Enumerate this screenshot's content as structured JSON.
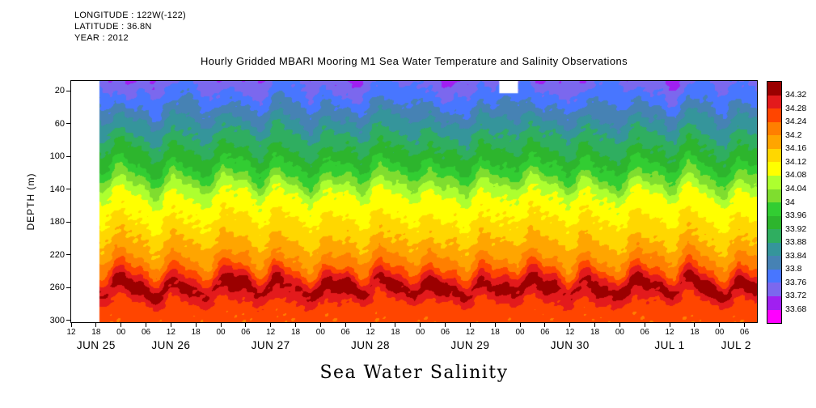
{
  "header": {
    "line1": "LONGITUDE : 122W(-122)",
    "line2": "LATITUDE : 36.8N",
    "line3": "YEAR : 2012"
  },
  "title": "Hourly Gridded MBARI Mooring M1 Sea Water Temperature and Salinity Observations",
  "footer_title": "Sea Water Salinity",
  "chart_data": {
    "type": "heatmap",
    "title": "Hourly Gridded MBARI Mooring M1 Sea Water Temperature and Salinity Observations",
    "xlabel": "",
    "ylabel": "DEPTH (m)",
    "y_ticks": [
      20,
      60,
      100,
      140,
      180,
      220,
      260,
      300
    ],
    "y_range": [
      8,
      302
    ],
    "x_range_hours": [
      0,
      165
    ],
    "x_tick_step_hours": 6,
    "x_tick_labels": [
      "12",
      "18",
      "00",
      "06",
      "12",
      "18",
      "00",
      "06",
      "12",
      "18",
      "00",
      "06",
      "12",
      "18",
      "00",
      "06",
      "12",
      "18",
      "00",
      "06",
      "12",
      "18",
      "00",
      "06",
      "12",
      "18",
      "00",
      "06"
    ],
    "day_labels": [
      {
        "label": "JUN 25",
        "hour": 6
      },
      {
        "label": "JUN 26",
        "hour": 24
      },
      {
        "label": "JUN 27",
        "hour": 48
      },
      {
        "label": "JUN 28",
        "hour": 72
      },
      {
        "label": "JUN 29",
        "hour": 96
      },
      {
        "label": "JUN 30",
        "hour": 120
      },
      {
        "label": "JUL 1",
        "hour": 144
      },
      {
        "label": "JUL 2",
        "hour": 160
      }
    ],
    "colorbar": {
      "levels": [
        33.68,
        33.72,
        33.76,
        33.8,
        33.84,
        33.88,
        33.92,
        33.96,
        34,
        34.04,
        34.08,
        34.12,
        34.16,
        34.2,
        34.24,
        34.28,
        34.32
      ],
      "level_labels": [
        "33.68",
        "33.72",
        "33.76",
        "33.8",
        "33.84",
        "33.88",
        "33.92",
        "33.96",
        "34",
        "34.04",
        "34.08",
        "34.12",
        "34.16",
        "34.2",
        "34.24",
        "34.28",
        "34.32"
      ],
      "colors_bottom_to_top": [
        "#ff00ff",
        "#a020f0",
        "#7b68ee",
        "#4876ff",
        "#4682b4",
        "#35959b",
        "#2fae60",
        "#2db52d",
        "#32cd32",
        "#7fdd2f",
        "#adff2f",
        "#ffff00",
        "#ffd700",
        "#ffa500",
        "#ff7f00",
        "#ff4500",
        "#e31a1c",
        "#9b0000"
      ]
    },
    "mean_profile": {
      "depths_m": [
        0,
        15,
        30,
        45,
        60,
        75,
        90,
        105,
        120,
        130,
        140,
        150,
        165,
        180,
        200,
        220,
        235,
        245,
        252,
        258,
        266,
        274,
        285,
        300,
        310
      ],
      "salinity": [
        33.74,
        33.76,
        33.79,
        33.82,
        33.855,
        33.885,
        33.915,
        33.945,
        33.985,
        34.02,
        34.06,
        34.085,
        34.105,
        34.125,
        34.155,
        34.19,
        34.23,
        34.275,
        34.31,
        34.335,
        34.325,
        34.29,
        34.26,
        34.25,
        34.25
      ]
    },
    "missing_data_regions": [
      {
        "t0_hours": 0,
        "t1_hours": 6.8,
        "d0_m": 8,
        "d1_m": 302
      },
      {
        "t0_hours": 103,
        "t1_hours": 107.5,
        "d0_m": 8,
        "d1_m": 23
      }
    ],
    "texture": {
      "tide_amp_m": 9,
      "tide_period_h": 12.42,
      "tide2_amp_m": 5,
      "tide2_period_h": 6.21,
      "noise_disp_amp_m": 7,
      "surface_anom_range": 0.05,
      "deep_band_center_m": 257,
      "deep_band_sigma_m": 12,
      "noise_sal_amp": 0.012
    }
  }
}
